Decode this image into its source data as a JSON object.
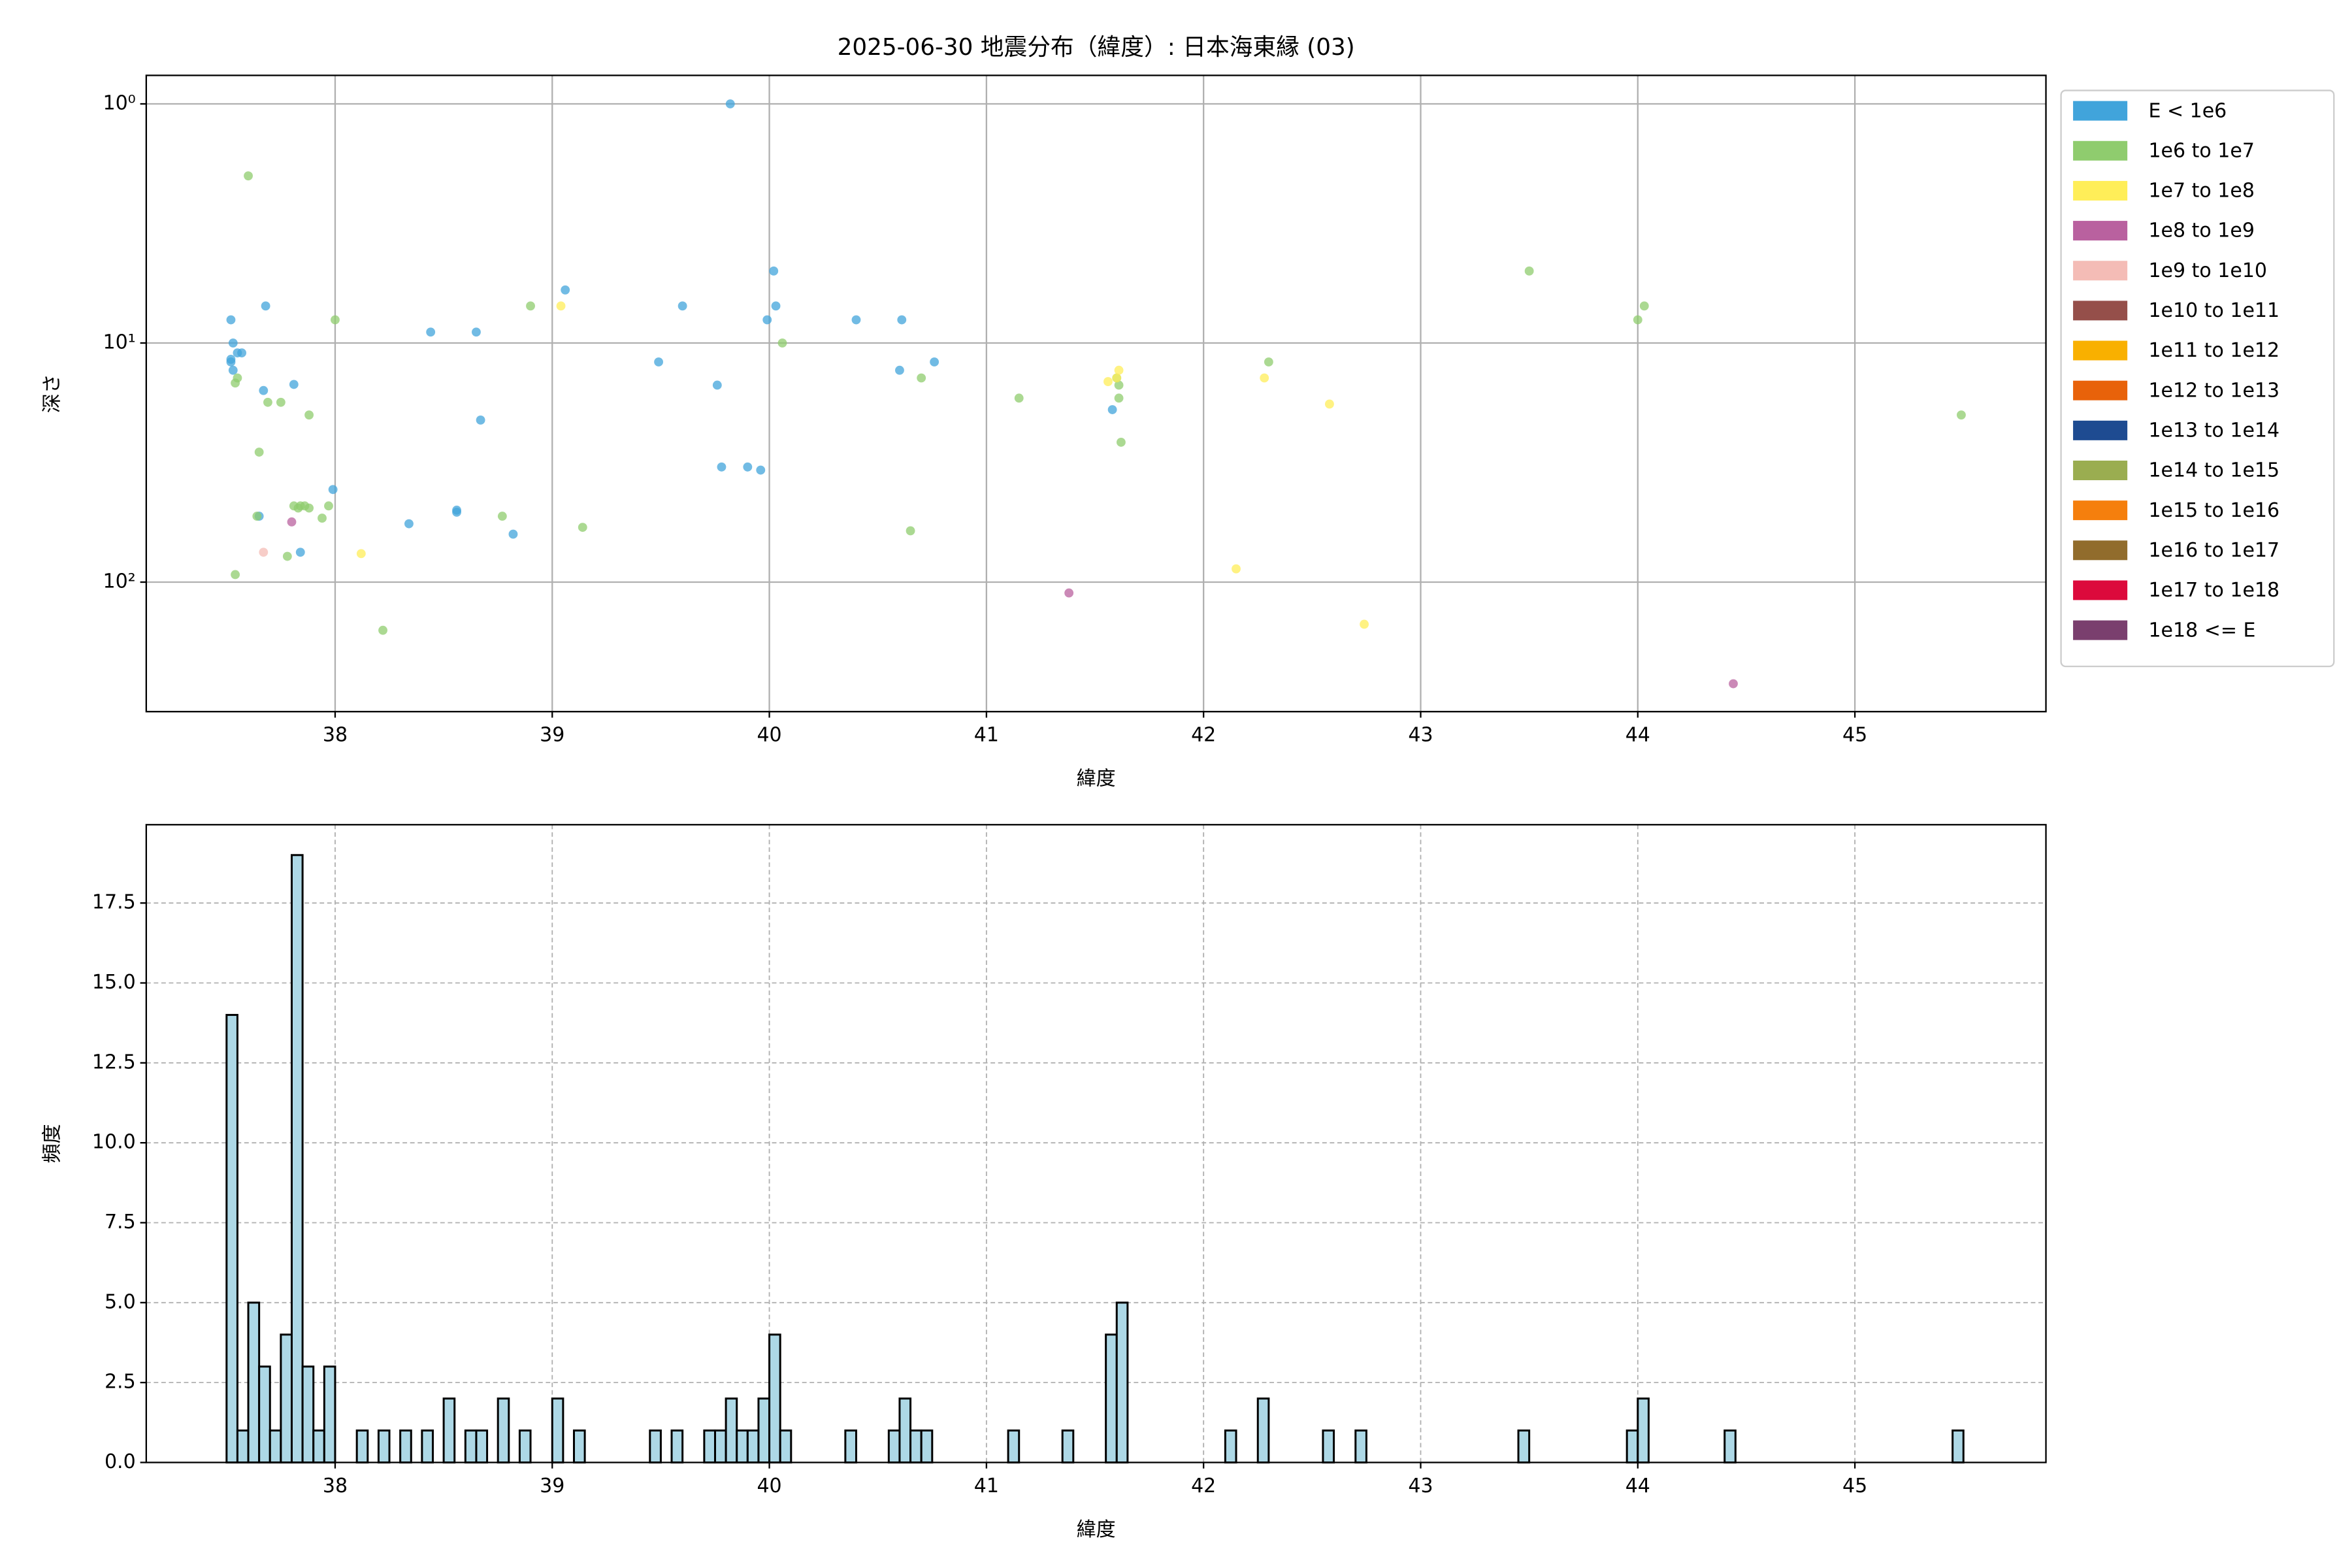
{
  "chart_data": [
    {
      "type": "scatter",
      "title": "2025-06-30 地震分布（緯度）: 日本海東縁 (03)",
      "xlabel": "緯度",
      "ylabel": "深さ",
      "xlim": [
        37.13,
        45.88
      ],
      "ylim": [
        0.76,
        348
      ],
      "yscale": "log",
      "y_inverted": true,
      "xticks": [
        38,
        39,
        40,
        41,
        42,
        43,
        44,
        45
      ],
      "yticks": [
        {
          "value": 1,
          "label": "10⁰"
        },
        {
          "value": 10,
          "label": "10¹"
        },
        {
          "value": 100,
          "label": "10²"
        }
      ],
      "grid": "solid",
      "legend": "outside right",
      "series": [
        {
          "name": "E < 1e6",
          "color": "#41a4db",
          "x": [
            37.52,
            37.52,
            37.52,
            37.53,
            37.53,
            37.55,
            37.57,
            37.68,
            37.67,
            37.81,
            38.44,
            38.65,
            38.67,
            39.06,
            37.99,
            38.34,
            38.56,
            38.56,
            38.82,
            37.84,
            37.65,
            39.49,
            39.6,
            39.76,
            39.78,
            39.9,
            39.96,
            39.99,
            40.02,
            40.03,
            40.4,
            40.6,
            40.61,
            40.76,
            41.58,
            39.82
          ],
          "y": [
            8,
            11.7,
            12,
            13,
            10,
            11,
            11,
            7,
            15.8,
            14.9,
            9,
            9,
            21,
            6,
            41,
            57,
            50,
            51,
            63,
            75,
            53,
            12,
            7,
            15,
            33,
            33,
            34,
            8,
            5,
            7,
            8,
            13,
            8,
            12,
            19,
            1
          ]
        },
        {
          "name": "1e6 to 1e7",
          "color": "#8fcc6e",
          "x": [
            37.6,
            38,
            38.9,
            37.54,
            37.55,
            37.65,
            37.69,
            37.75,
            37.88,
            37.64,
            37.81,
            37.84,
            37.86,
            37.88,
            37.83,
            37.94,
            37.97,
            37.78,
            37.54,
            38.22,
            38.77,
            39.14,
            40.06,
            40.7,
            40.65,
            41.15,
            41.61,
            41.61,
            41.62,
            41.6,
            42.3,
            43.5,
            44,
            45.49,
            44.03
          ],
          "y": [
            2,
            8,
            7,
            14.7,
            14,
            28.6,
            17.7,
            17.7,
            20,
            53,
            48,
            48,
            48,
            49,
            49,
            54,
            48,
            78,
            93,
            159,
            53,
            59,
            10,
            14,
            61,
            17,
            15,
            17,
            26,
            14,
            12,
            5,
            8,
            20,
            7
          ]
        },
        {
          "name": "1e7 to 1e8",
          "color": "#ffee58",
          "x": [
            39.04,
            38.12,
            41.6,
            41.61,
            41.56,
            42.28,
            42.58,
            42.15,
            42.74
          ],
          "y": [
            7,
            76,
            14,
            13,
            14.5,
            14,
            18,
            88,
            150
          ]
        },
        {
          "name": "1e8 to 1e9",
          "color": "#b9619f",
          "x": [
            37.8,
            41.38,
            44.44
          ],
          "y": [
            56,
            111,
            266
          ]
        },
        {
          "name": "1e9 to 1e10",
          "color": "#f4bcb6",
          "x": [
            37.67
          ],
          "y": [
            75
          ]
        },
        {
          "name": "1e10 to 1e11",
          "color": "#954f4a",
          "x": [],
          "y": []
        },
        {
          "name": "1e11 to 1e12",
          "color": "#f9b000",
          "x": [],
          "y": []
        },
        {
          "name": "1e12 to 1e13",
          "color": "#e8620a",
          "x": [],
          "y": []
        },
        {
          "name": "1e13 to 1e14",
          "color": "#1e4b91",
          "x": [],
          "y": []
        },
        {
          "name": "1e14 to 1e15",
          "color": "#9aad50",
          "x": [],
          "y": []
        },
        {
          "name": "1e15 to 1e16",
          "color": "#f57f0d",
          "x": [],
          "y": []
        },
        {
          "name": "1e16 to 1e17",
          "color": "#916c2c",
          "x": [],
          "y": []
        },
        {
          "name": "1e17 to 1e18",
          "color": "#dc0a3c",
          "x": [],
          "y": []
        },
        {
          "name": "1e18 <= E",
          "color": "#7a3f6e",
          "x": [],
          "y": []
        }
      ]
    },
    {
      "type": "histogram",
      "xlabel": "緯度",
      "ylabel": "頻度",
      "color": "#add8e6",
      "edgecolor": "#000000",
      "xlim": [
        37.13,
        45.88
      ],
      "ylim": [
        0,
        19.95
      ],
      "xticks": [
        38,
        39,
        40,
        41,
        42,
        43,
        44,
        45
      ],
      "yticks": [
        {
          "value": 0,
          "label": "0.0"
        },
        2.5,
        {
          "value": 5,
          "label": "5.0"
        },
        7.5,
        {
          "value": 10,
          "label": "10.0"
        },
        12.5,
        {
          "value": 15,
          "label": "15.0"
        },
        17.5
      ],
      "grid": "dashed",
      "bins": [
        37.5,
        37.55,
        37.6,
        37.65,
        37.7,
        37.75,
        37.8,
        37.85,
        37.9,
        37.95,
        38,
        38.05,
        38.1,
        38.15,
        38.2,
        38.25,
        38.3,
        38.35,
        38.4,
        38.45,
        38.5,
        38.55,
        38.6,
        38.65,
        38.7,
        38.75,
        38.8,
        38.85,
        38.9,
        38.95,
        39,
        39.05,
        39.1,
        39.15,
        39.2,
        39.25,
        39.3,
        39.35,
        39.4,
        39.45,
        39.5,
        39.55,
        39.6,
        39.65,
        39.7,
        39.75,
        39.8,
        39.85,
        39.9,
        39.95,
        40,
        40.05,
        40.1,
        40.15,
        40.2,
        40.25,
        40.3,
        40.35,
        40.4,
        40.45,
        40.5,
        40.55,
        40.6,
        40.65,
        40.7,
        40.75,
        40.8,
        40.85,
        40.9,
        40.95,
        41,
        41.05,
        41.1,
        41.15,
        41.2,
        41.25,
        41.3,
        41.35,
        41.4,
        41.45,
        41.5,
        41.55,
        41.6,
        41.65,
        41.7,
        41.75,
        41.8,
        41.85,
        41.9,
        41.95,
        42,
        42.05,
        42.1,
        42.15,
        42.2,
        42.25,
        42.3,
        42.35,
        42.4,
        42.45,
        42.5,
        42.55,
        42.6,
        42.65,
        42.7,
        42.75,
        42.8,
        42.85,
        42.9,
        42.95,
        43,
        43.05,
        43.1,
        43.15,
        43.2,
        43.25,
        43.3,
        43.35,
        43.4,
        43.45,
        43.5,
        43.55,
        43.6,
        43.65,
        43.7,
        43.75,
        43.8,
        43.85,
        43.9,
        43.95,
        44,
        44.05,
        44.1,
        44.15,
        44.2,
        44.25,
        44.3,
        44.35,
        44.4,
        44.45,
        44.5,
        44.55,
        44.6,
        44.65,
        44.7,
        44.75,
        44.8,
        44.85,
        44.9,
        44.95,
        45,
        45.05,
        45.1,
        45.15,
        45.2,
        45.25,
        45.3,
        45.35,
        45.4,
        45.45,
        45.5
      ],
      "counts": [
        14,
        1,
        5,
        3,
        1,
        4,
        19,
        3,
        1,
        3,
        0,
        0,
        1,
        0,
        1,
        0,
        1,
        0,
        1,
        0,
        2,
        0,
        1,
        1,
        0,
        2,
        0,
        1,
        0,
        0,
        2,
        0,
        1,
        0,
        0,
        0,
        0,
        0,
        0,
        1,
        0,
        1,
        0,
        0,
        1,
        1,
        2,
        1,
        1,
        2,
        4,
        1,
        0,
        0,
        0,
        0,
        0,
        1,
        0,
        0,
        0,
        1,
        2,
        1,
        1,
        0,
        0,
        0,
        0,
        0,
        0,
        0,
        1,
        0,
        0,
        0,
        0,
        1,
        0,
        0,
        0,
        4,
        5,
        0,
        0,
        0,
        0,
        0,
        0,
        0,
        0,
        0,
        1,
        0,
        0,
        2,
        0,
        0,
        0,
        0,
        0,
        1,
        0,
        0,
        1,
        0,
        0,
        0,
        0,
        0,
        0,
        0,
        0,
        0,
        0,
        0,
        0,
        0,
        0,
        1,
        0,
        0,
        0,
        0,
        0,
        0,
        0,
        0,
        0,
        1,
        2,
        0,
        0,
        0,
        0,
        0,
        0,
        0,
        1,
        0,
        0,
        0,
        0,
        0,
        0,
        0,
        0,
        0,
        0,
        0,
        0,
        0,
        0,
        0,
        0,
        0,
        0,
        0,
        0,
        1
      ]
    }
  ]
}
